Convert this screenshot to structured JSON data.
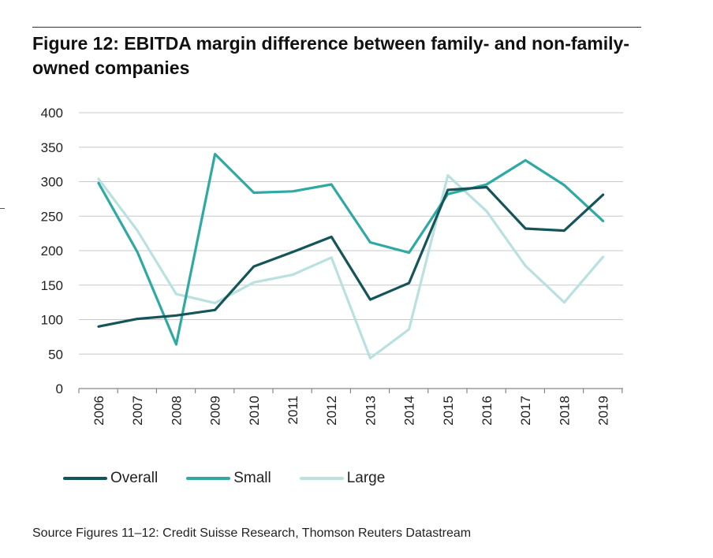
{
  "title": "Figure 12: EBITDA margin difference between family- and non-family-owned companies",
  "source": "Source Figures 11–12: Credit Suisse Research, Thomson Reuters Datastream",
  "colors": {
    "overall": "#15555a",
    "small": "#2fa9a3",
    "large": "#b9e1e0",
    "grid": "#c8c8c8",
    "axis": "#888888"
  },
  "chart_data": {
    "type": "line",
    "title": "Figure 12: EBITDA margin difference between family- and non-family-owned companies",
    "xlabel": "",
    "ylabel": "",
    "ylim": [
      0,
      400
    ],
    "yticks": [
      0,
      50,
      100,
      150,
      200,
      250,
      300,
      350,
      400
    ],
    "grid": true,
    "legend": "bottom",
    "x": [
      "2006",
      "2007",
      "2008",
      "2009",
      "2010",
      "2011",
      "2012",
      "2013",
      "2014",
      "2015",
      "2016",
      "2017",
      "2018",
      "2019"
    ],
    "series": [
      {
        "name": "Overall",
        "color_key": "overall",
        "values": [
          90,
          101,
          106,
          114,
          177,
          198,
          220,
          129,
          153,
          288,
          292,
          232,
          229,
          281
        ]
      },
      {
        "name": "Small",
        "color_key": "small",
        "values": [
          298,
          198,
          64,
          340,
          284,
          286,
          296,
          212,
          197,
          282,
          296,
          331,
          295,
          243
        ]
      },
      {
        "name": "Large",
        "color_key": "large",
        "values": [
          304,
          229,
          137,
          124,
          154,
          165,
          190,
          44,
          86,
          309,
          257,
          178,
          125,
          191
        ]
      }
    ]
  }
}
